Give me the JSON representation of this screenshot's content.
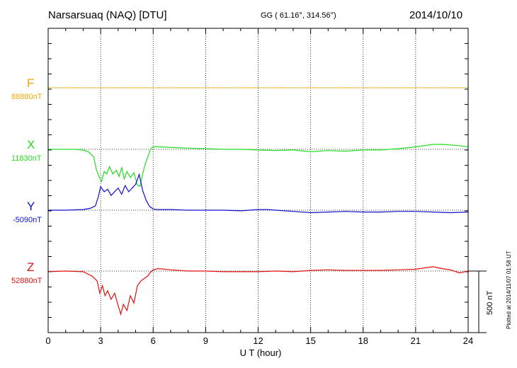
{
  "header": {
    "station": "Narsarsuaq (NAQ)  [DTU]",
    "coords": "GG ( 61.16°, 314.56°)",
    "date": "2014/10/10"
  },
  "plotted_note": "Plotted at 2014/11/07 01:58 UT",
  "scale_label": "500 nT",
  "components": [
    {
      "key": "F",
      "label": "F",
      "base": "88880nT",
      "color": "#f0a800"
    },
    {
      "key": "X",
      "label": "X",
      "base": "11830nT",
      "color": "#22dd22"
    },
    {
      "key": "Y",
      "label": "Y",
      "base": "-5090nT",
      "color": "#1010cc"
    },
    {
      "key": "Z",
      "label": "Z",
      "base": "52880nT",
      "color": "#e01010"
    }
  ],
  "chart_data": {
    "type": "line",
    "title": "Narsarsuaq (NAQ)  [DTU]",
    "xlabel": "U T (hour)",
    "ylabel": "",
    "xlim": [
      0,
      24
    ],
    "xticks": [
      "0",
      "3",
      "6",
      "9",
      "12",
      "15",
      "18",
      "21",
      "24"
    ],
    "scale_bar_nT": 500,
    "grid": true,
    "series": [
      {
        "name": "F",
        "baseline_nT": 88880,
        "x": [
          0,
          24
        ],
        "y": [
          0,
          0
        ]
      },
      {
        "name": "X",
        "baseline_nT": 11830,
        "x": [
          0,
          0.5,
          1.5,
          2.0,
          2.3,
          2.6,
          2.75,
          2.9,
          3.05,
          3.2,
          3.35,
          3.5,
          3.7,
          3.9,
          4.05,
          4.2,
          4.35,
          4.5,
          4.7,
          4.9,
          5.1,
          5.25,
          5.4,
          5.55,
          5.7,
          5.85,
          6.0,
          6.5,
          7,
          8,
          9,
          10,
          11,
          12,
          13,
          14,
          15,
          16,
          17,
          18,
          19,
          20,
          21,
          22,
          22.5,
          23,
          23.5,
          24
        ],
        "y": [
          0,
          0,
          0,
          -5,
          -20,
          -60,
          -160,
          -220,
          -260,
          -180,
          -200,
          -140,
          -200,
          -170,
          -220,
          -150,
          -240,
          -180,
          -230,
          -190,
          -290,
          -300,
          -200,
          -120,
          -60,
          0,
          20,
          20,
          15,
          10,
          5,
          0,
          0,
          -5,
          -10,
          -5,
          -20,
          -10,
          -15,
          -5,
          -5,
          5,
          20,
          40,
          40,
          35,
          30,
          20
        ]
      },
      {
        "name": "Y",
        "baseline_nT": -5090,
        "x": [
          0,
          1,
          2,
          2.4,
          2.7,
          2.85,
          3.0,
          3.2,
          3.4,
          3.6,
          3.8,
          4.0,
          4.2,
          4.4,
          4.6,
          4.8,
          5.0,
          5.2,
          5.4,
          5.6,
          5.8,
          6.0,
          6.2,
          7,
          8,
          9,
          10,
          11,
          12,
          12.5,
          13,
          14,
          15,
          16,
          17,
          18,
          19,
          20,
          21,
          22,
          23,
          24
        ],
        "y": [
          0,
          0,
          5,
          15,
          35,
          100,
          190,
          150,
          170,
          120,
          150,
          180,
          130,
          200,
          150,
          180,
          210,
          290,
          160,
          80,
          30,
          10,
          5,
          5,
          0,
          0,
          0,
          -5,
          5,
          5,
          0,
          -10,
          -20,
          -15,
          -10,
          -15,
          -15,
          -10,
          -10,
          -15,
          -20,
          -15
        ]
      },
      {
        "name": "Z",
        "baseline_nT": 52880,
        "x": [
          0,
          1,
          2,
          2.5,
          2.8,
          2.95,
          3.1,
          3.25,
          3.4,
          3.6,
          3.8,
          4.0,
          4.15,
          4.3,
          4.5,
          4.7,
          4.9,
          5.1,
          5.3,
          5.5,
          5.7,
          5.85,
          6.0,
          6.3,
          7,
          8,
          9,
          10,
          11,
          12,
          13,
          14,
          15,
          16,
          17,
          18,
          19,
          20,
          21,
          21.5,
          22,
          22.5,
          23,
          23.5,
          24
        ],
        "y": [
          -5,
          0,
          -5,
          -40,
          -80,
          -180,
          -120,
          -200,
          -160,
          -230,
          -180,
          -280,
          -350,
          -270,
          -320,
          -200,
          -260,
          -120,
          -80,
          -60,
          -40,
          -10,
          10,
          20,
          10,
          0,
          0,
          -5,
          -5,
          -5,
          0,
          -5,
          5,
          10,
          5,
          5,
          5,
          10,
          15,
          25,
          35,
          20,
          10,
          -15,
          0
        ]
      }
    ]
  }
}
